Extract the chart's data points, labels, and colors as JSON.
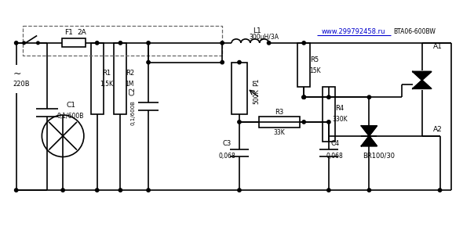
{
  "title": "",
  "bg_color": "#ffffff",
  "line_color": "#000000",
  "dashed_color": "#555555",
  "text_color": "#000000",
  "url_color": "#0000cc",
  "figsize": [
    6.04,
    2.94
  ],
  "dpi": 100,
  "labels": {
    "voltage": "220B",
    "ac_symbol": "~",
    "F1": "F1",
    "fuse_rating": "2A",
    "L1": "L1",
    "L1_val": "300μH/3A",
    "R1": "R1",
    "R1_val": "1,5K",
    "R2": "R2",
    "R2_val": "1M",
    "R5": "R5",
    "R5_val": "15K",
    "P1": "P1",
    "P1_val": "500K",
    "R3": "R3",
    "R3_val": "33K",
    "R4": "R4",
    "R4_val": "330K",
    "C1": "C1",
    "C1_val": "0,1/600B",
    "C2": "C2",
    "C2_val": "0,1/600B",
    "C3": "C3",
    "C3_val": "0,068",
    "C4": "C4",
    "C4_val": "0,068",
    "triac": "BTA06-600BW",
    "A1": "A1",
    "A2": "A2",
    "bridge": "BR100/30",
    "url": "www.299792458.ru"
  }
}
